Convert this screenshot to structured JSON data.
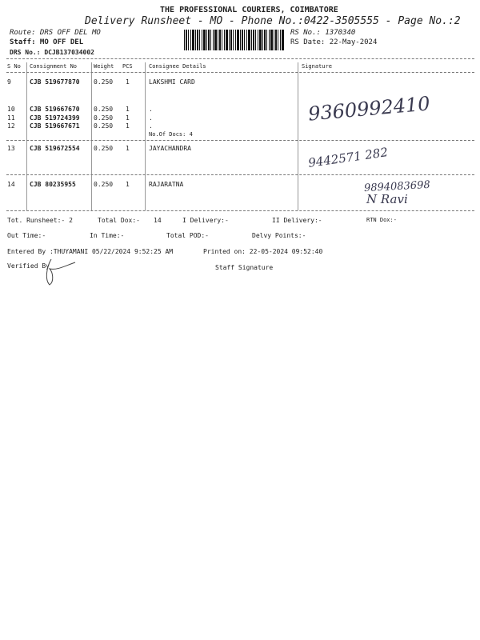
{
  "header": {
    "company": "THE PROFESSIONAL COURIERS, COIMBATORE",
    "title": "Delivery Runsheet - MO - Phone No.:0422-3505555 - Page No.:2",
    "route": "Route: DRS OFF DEL MO",
    "staff": "Staff: MO OFF DEL",
    "drs_no": "DRS No.: DCJB137034002",
    "rs_no": "RS No.: 1370340",
    "rs_date": "RS Date: 22-May-2024"
  },
  "table": {
    "columns": [
      "S No",
      "Consignment No",
      "Weight",
      "PCS",
      "Consignee Details",
      "Signature"
    ],
    "rows": [
      {
        "sno": "9",
        "cno": "CJB 519677870",
        "weight": "0.250",
        "pcs": "1",
        "consignee": "LAKSHMI CARD"
      },
      {
        "sno": "10",
        "cno": "CJB 519667670",
        "weight": "0.250",
        "pcs": "1",
        "consignee": "."
      },
      {
        "sno": "11",
        "cno": "CJB 519724399",
        "weight": "0.250",
        "pcs": "1",
        "consignee": "."
      },
      {
        "sno": "12",
        "cno": "CJB 519667671",
        "weight": "0.250",
        "pcs": "1",
        "consignee": "."
      },
      {
        "sno": "13",
        "cno": "CJB 519672554",
        "weight": "0.250",
        "pcs": "1",
        "consignee": "JAYACHANDRA"
      },
      {
        "sno": "14",
        "cno": "CJB 80235955",
        "weight": "0.250",
        "pcs": "1",
        "consignee": "RAJARATNA"
      }
    ],
    "docs_note": "No.Of Docs: 4",
    "handwriting": [
      "9360992410",
      "9442571 282",
      "9894083698",
      "N Ravi"
    ]
  },
  "totals": {
    "runsheet": "Tot. Runsheet:- 2",
    "total_dox": "Total Dox:-",
    "total_dox_val": "14",
    "i_delivery": "I Delivery:-",
    "ii_delivery": "II Delivery:-",
    "rtn_dox": "RTN Dox:-"
  },
  "times": {
    "out": "Out Time:-",
    "in": "In Time:-",
    "pod": "Total POD:-",
    "points": "Delvy Points:-"
  },
  "footer": {
    "entered": "Entered By :THUYAMANI 05/22/2024 9:52:25 AM",
    "printed": "Printed on: 22-05-2024 09:52:40",
    "verified": "Verified By",
    "staff_sig": "Staff Signature"
  }
}
